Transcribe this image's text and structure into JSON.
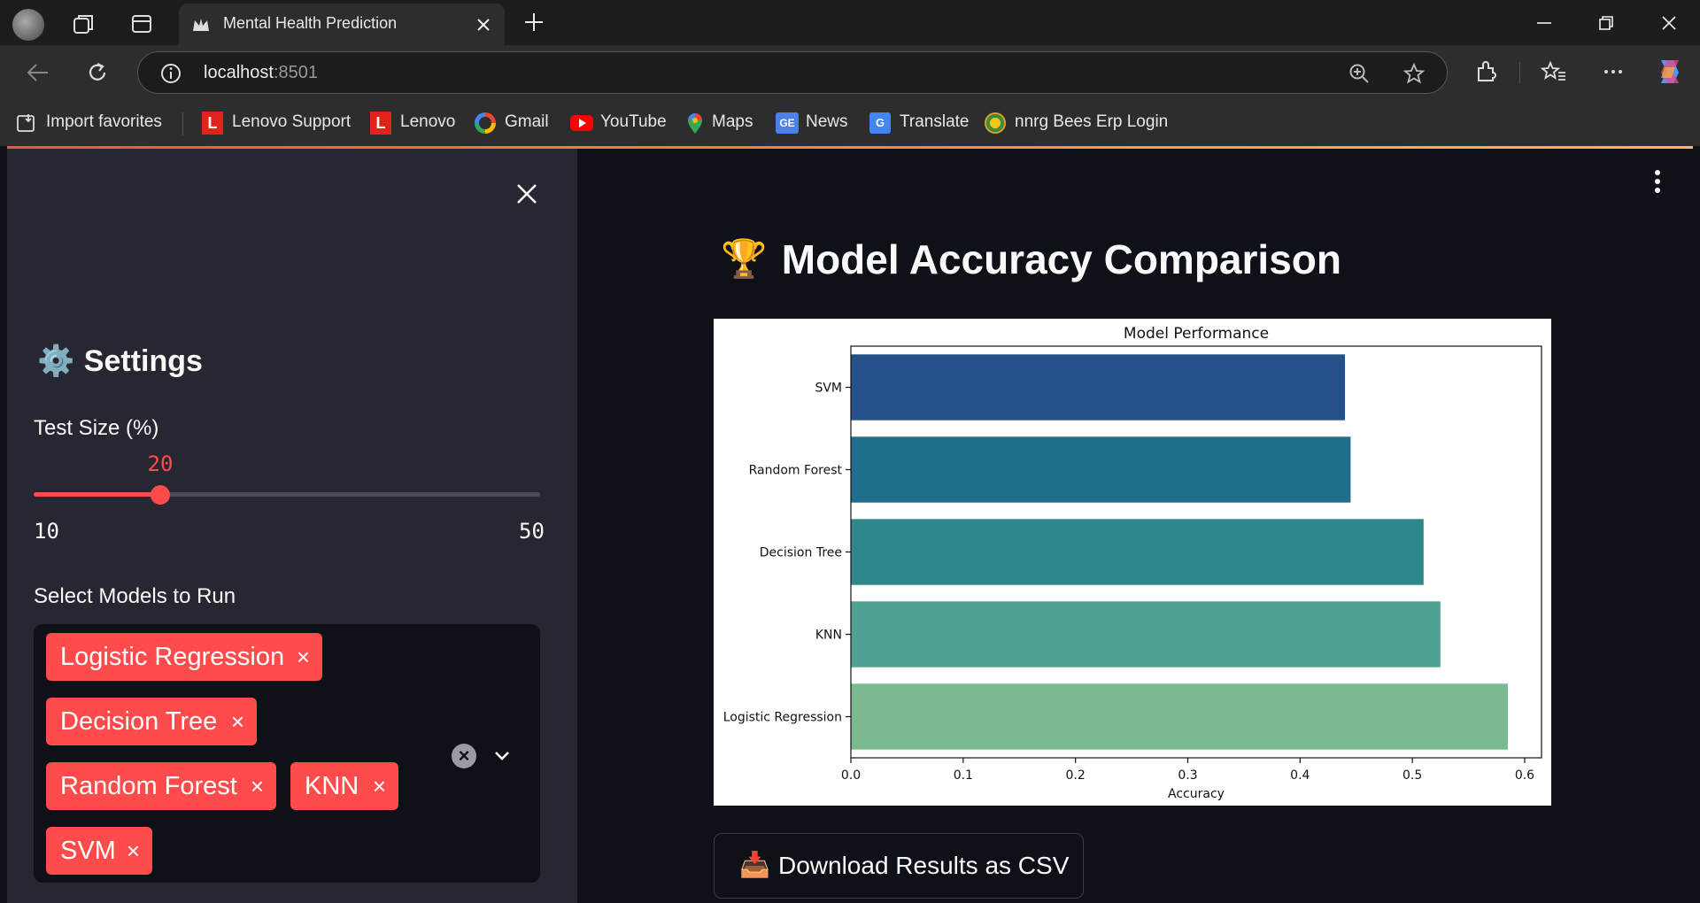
{
  "browser": {
    "tab_title": "Mental Health Prediction",
    "url_host": "localhost",
    "url_port": ":8501",
    "bookmarks": [
      {
        "label": "Import favorites",
        "icon": "import-icon"
      },
      {
        "label": "Lenovo Support",
        "icon": "lenovo-icon"
      },
      {
        "label": "Lenovo",
        "icon": "lenovo-icon"
      },
      {
        "label": "Gmail",
        "icon": "google-icon"
      },
      {
        "label": "YouTube",
        "icon": "youtube-icon"
      },
      {
        "label": "Maps",
        "icon": "maps-icon"
      },
      {
        "label": "News",
        "icon": "news-icon"
      },
      {
        "label": "Translate",
        "icon": "translate-icon"
      },
      {
        "label": "nnrg Bees Erp Login",
        "icon": "nnrg-icon"
      }
    ]
  },
  "sidebar": {
    "heading_icon": "⚙️",
    "heading": "Settings",
    "slider": {
      "label": "Test Size (%)",
      "value": 20,
      "value_text": "20",
      "min": 10,
      "min_text": "10",
      "max": 50,
      "max_text": "50"
    },
    "models_label": "Select Models to Run",
    "selected_models": [
      "Logistic Regression",
      "Decision Tree",
      "Random Forest",
      "KNN",
      "SVM"
    ],
    "remove_glyph": "×"
  },
  "main": {
    "title_icon": "🏆",
    "title": "Model Accuracy Comparison",
    "download_icon": "📥",
    "download_label": "Download Results as CSV"
  },
  "chart_data": {
    "type": "bar",
    "orientation": "horizontal",
    "title": "Model Performance",
    "xlabel": "Accuracy",
    "ylabel": "",
    "categories": [
      "SVM",
      "Random Forest",
      "Decision Tree",
      "KNN",
      "Logistic Regression"
    ],
    "values": [
      0.44,
      0.445,
      0.51,
      0.525,
      0.585
    ],
    "colors": [
      "#26508a",
      "#1f6e8c",
      "#2e888b",
      "#4fa293",
      "#7bb990"
    ],
    "xlim": [
      0,
      0.615
    ],
    "xticks": [
      0.0,
      0.1,
      0.2,
      0.3,
      0.4,
      0.5,
      0.6
    ],
    "xtick_labels": [
      "0.0",
      "0.1",
      "0.2",
      "0.3",
      "0.4",
      "0.5",
      "0.6"
    ],
    "grid": false
  },
  "colors": {
    "accent": "#ff4b4b",
    "sidebar_bg": "#262730",
    "main_bg": "#0e1117"
  }
}
